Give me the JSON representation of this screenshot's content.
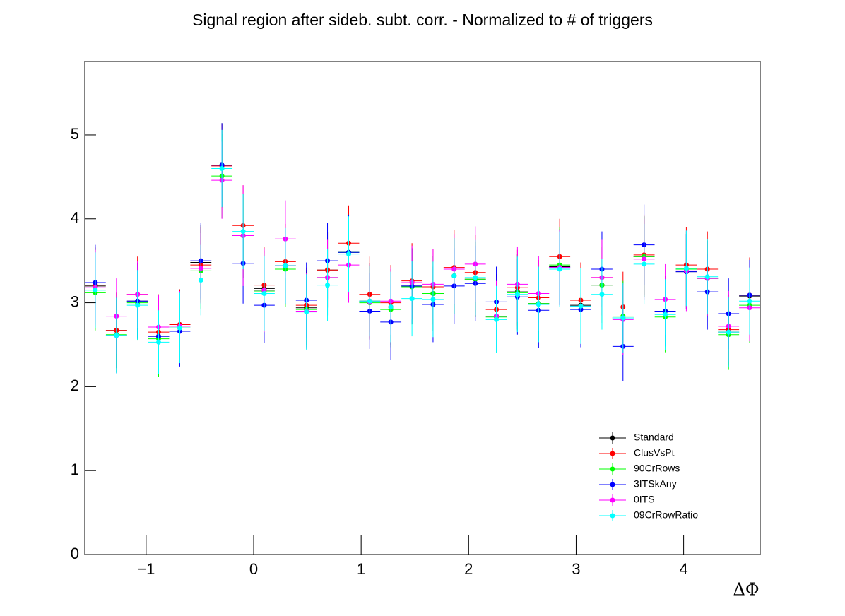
{
  "chart_data": {
    "type": "scatter",
    "title": "Signal region after sideb. subt. corr. - Normalized to # of triggers",
    "x_label": "ΔΦ",
    "xlim": [
      -1.5708,
      4.7124
    ],
    "ylim": [
      0,
      5.875
    ],
    "xticks": [
      {
        "value": -1,
        "label": "−1"
      },
      0,
      1,
      2,
      3,
      4
    ],
    "yticks": [
      0,
      1,
      2,
      3,
      4,
      5
    ],
    "legend": "lower right",
    "xerr": 0.098,
    "x": [
      -1.473,
      -1.276,
      -1.08,
      -0.884,
      -0.687,
      -0.491,
      -0.295,
      -0.098,
      0.098,
      0.295,
      0.491,
      0.687,
      0.884,
      1.08,
      1.276,
      1.473,
      1.669,
      1.865,
      2.062,
      2.258,
      2.454,
      2.651,
      2.847,
      3.043,
      3.24,
      3.436,
      3.632,
      3.829,
      4.025,
      4.221,
      4.418,
      4.614
    ],
    "series": [
      {
        "name": "Standard",
        "color": "#000000",
        "values": [
          3.2,
          2.67,
          3.02,
          2.6,
          2.74,
          3.48,
          4.64,
          3.8,
          3.17,
          3.44,
          2.94,
          3.39,
          3.6,
          3.02,
          2.95,
          3.2,
          3.11,
          3.32,
          3.28,
          2.84,
          3.13,
          2.99,
          3.43,
          2.97,
          3.21,
          2.82,
          3.55,
          2.9,
          3.37,
          3.29,
          2.65,
          3.08
        ],
        "errors": [
          0.45,
          0.45,
          0.45,
          0.45,
          0.42,
          0.45,
          0.5,
          0.5,
          0.45,
          0.45,
          0.45,
          0.45,
          0.45,
          0.45,
          0.45,
          0.45,
          0.45,
          0.45,
          0.45,
          0.42,
          0.45,
          0.45,
          0.45,
          0.45,
          0.45,
          0.42,
          0.48,
          0.42,
          0.45,
          0.45,
          0.42,
          0.45
        ]
      },
      {
        "name": "ClusVsPt",
        "color": "#ff0000",
        "values": [
          3.21,
          2.67,
          3.1,
          2.65,
          2.74,
          3.45,
          4.63,
          3.92,
          3.21,
          3.49,
          2.97,
          3.39,
          3.71,
          3.1,
          3.0,
          3.26,
          3.19,
          3.42,
          3.36,
          2.92,
          3.18,
          3.06,
          3.55,
          3.03,
          3.3,
          2.95,
          3.57,
          2.9,
          3.45,
          3.4,
          2.68,
          3.09
        ],
        "errors": [
          0.45,
          0.45,
          0.45,
          0.45,
          0.42,
          0.45,
          0.5,
          0.48,
          0.45,
          0.45,
          0.45,
          0.45,
          0.45,
          0.45,
          0.45,
          0.45,
          0.45,
          0.45,
          0.45,
          0.42,
          0.45,
          0.45,
          0.45,
          0.45,
          0.45,
          0.42,
          0.48,
          0.42,
          0.45,
          0.45,
          0.42,
          0.45
        ]
      },
      {
        "name": "90CrRows",
        "color": "#00ff00",
        "values": [
          3.12,
          2.62,
          3.0,
          2.57,
          2.7,
          3.38,
          4.51,
          3.8,
          3.14,
          3.4,
          2.92,
          3.3,
          3.6,
          3.0,
          2.92,
          3.19,
          3.11,
          3.32,
          3.28,
          2.83,
          3.12,
          2.99,
          3.45,
          2.96,
          3.21,
          2.84,
          3.55,
          2.83,
          3.4,
          3.29,
          2.62,
          2.97
        ],
        "errors": [
          0.45,
          0.45,
          0.45,
          0.45,
          0.42,
          0.45,
          0.5,
          0.5,
          0.45,
          0.45,
          0.45,
          0.45,
          0.45,
          0.45,
          0.45,
          0.45,
          0.45,
          0.45,
          0.45,
          0.42,
          0.45,
          0.45,
          0.45,
          0.45,
          0.45,
          0.42,
          0.48,
          0.42,
          0.45,
          0.45,
          0.42,
          0.45
        ]
      },
      {
        "name": "3ITSkAny",
        "color": "#0000ff",
        "values": [
          3.24,
          2.61,
          3.02,
          2.6,
          2.66,
          3.5,
          4.64,
          3.47,
          2.97,
          3.44,
          3.03,
          3.5,
          3.6,
          2.9,
          2.77,
          3.2,
          2.98,
          3.2,
          3.23,
          3.01,
          3.07,
          2.91,
          3.42,
          2.92,
          3.4,
          2.48,
          3.69,
          2.9,
          3.37,
          3.13,
          2.87,
          3.09
        ],
        "errors": [
          0.45,
          0.45,
          0.45,
          0.45,
          0.42,
          0.45,
          0.5,
          0.48,
          0.45,
          0.45,
          0.45,
          0.45,
          0.45,
          0.45,
          0.45,
          0.45,
          0.45,
          0.45,
          0.45,
          0.42,
          0.45,
          0.45,
          0.45,
          0.45,
          0.45,
          0.41,
          0.48,
          0.42,
          0.45,
          0.45,
          0.42,
          0.42
        ]
      },
      {
        "name": "0ITS",
        "color": "#ff00ff",
        "values": [
          3.18,
          2.84,
          3.1,
          2.71,
          2.72,
          3.41,
          4.46,
          3.8,
          3.15,
          3.76,
          2.9,
          3.3,
          3.45,
          3.01,
          3.02,
          3.24,
          3.22,
          3.4,
          3.46,
          2.84,
          3.22,
          3.11,
          3.42,
          2.96,
          3.3,
          2.8,
          3.52,
          3.04,
          3.38,
          3.29,
          2.72,
          2.94
        ],
        "errors": [
          0.45,
          0.45,
          0.4,
          0.38,
          0.42,
          0.42,
          0.46,
          0.6,
          0.5,
          0.46,
          0.45,
          0.45,
          0.45,
          0.45,
          0.4,
          0.44,
          0.42,
          0.42,
          0.45,
          0.42,
          0.45,
          0.45,
          0.45,
          0.45,
          0.45,
          0.42,
          0.48,
          0.42,
          0.48,
          0.45,
          0.42,
          0.4
        ]
      },
      {
        "name": "09CrRowRatio",
        "color": "#00ffff",
        "values": [
          3.15,
          2.61,
          2.97,
          2.53,
          2.7,
          3.27,
          4.6,
          3.85,
          3.11,
          3.44,
          2.89,
          3.21,
          3.58,
          3.02,
          2.95,
          3.05,
          3.04,
          3.32,
          3.3,
          2.8,
          3.1,
          2.98,
          3.4,
          2.96,
          3.1,
          2.82,
          3.46,
          2.86,
          3.41,
          3.31,
          2.65,
          3.02
        ],
        "errors": [
          0.45,
          0.45,
          0.42,
          0.38,
          0.42,
          0.42,
          0.46,
          0.45,
          0.45,
          0.45,
          0.45,
          0.43,
          0.45,
          0.42,
          0.42,
          0.45,
          0.45,
          0.45,
          0.45,
          0.4,
          0.45,
          0.45,
          0.45,
          0.45,
          0.42,
          0.42,
          0.48,
          0.42,
          0.45,
          0.45,
          0.42,
          0.4
        ]
      }
    ]
  }
}
